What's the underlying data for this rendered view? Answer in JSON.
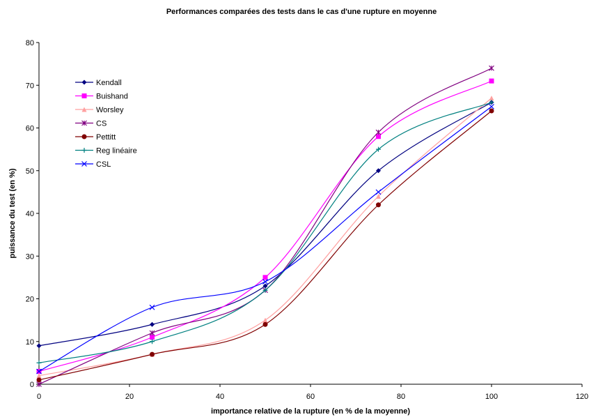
{
  "chart_data": {
    "type": "line",
    "title": "Performances comparées des tests dans le cas d'une rupture en moyenne",
    "xlabel": "importance relative de la rupture (en % de la moyenne)",
    "ylabel": "puissance du test (en %)",
    "xlim": [
      0,
      120
    ],
    "ylim": [
      0,
      80
    ],
    "xticks": [
      "0",
      "20",
      "40",
      "60",
      "80",
      "100",
      "120"
    ],
    "yticks": [
      "0",
      "10",
      "20",
      "30",
      "40",
      "50",
      "60",
      "70",
      "80"
    ],
    "grid": false,
    "legend_position": "top-left",
    "smooth": true,
    "x": [
      0,
      25,
      50,
      75,
      100
    ],
    "series": [
      {
        "name": "Kendall",
        "color": "#000080",
        "marker": "diamond",
        "values": [
          9,
          14,
          23,
          50,
          66
        ]
      },
      {
        "name": "Buishand",
        "color": "#FF00FF",
        "marker": "square",
        "values": [
          3,
          11,
          25,
          58,
          71
        ]
      },
      {
        "name": "Worsley",
        "color": "#FFA0A0",
        "marker": "triangle",
        "values": [
          2,
          7,
          15,
          44,
          67
        ]
      },
      {
        "name": "CS",
        "color": "#800080",
        "marker": "star",
        "values": [
          0,
          12,
          22,
          59,
          74
        ]
      },
      {
        "name": "Pettitt",
        "color": "#800000",
        "marker": "circle",
        "values": [
          1,
          7,
          14,
          42,
          64
        ]
      },
      {
        "name": "Reg linéaire",
        "color": "#008080",
        "marker": "plus",
        "values": [
          5,
          10,
          22,
          55,
          66
        ]
      },
      {
        "name": "CSL",
        "color": "#0000FF",
        "marker": "x",
        "values": [
          3,
          18,
          24,
          45,
          65
        ]
      }
    ]
  }
}
